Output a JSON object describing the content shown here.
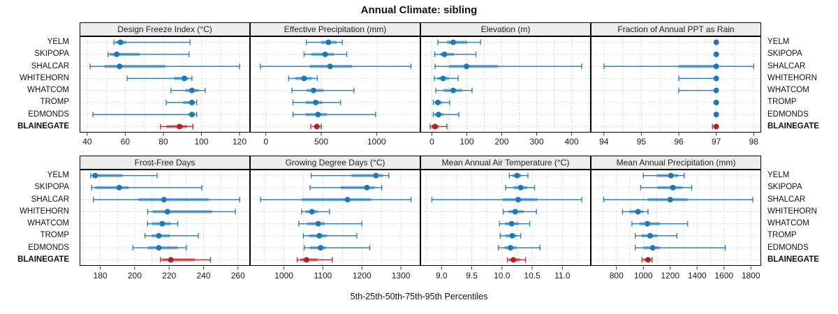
{
  "title": "Annual Climate: sibling",
  "caption": "5th-25th-50th-75th-95th Percentiles",
  "stations": [
    "YELM",
    "SKIPOPA",
    "SHALCAR",
    "WHITEHORN",
    "WHATCOM",
    "TROMP",
    "EDMONDS",
    "BLAINEGATE"
  ],
  "highlight_station": "BLAINEGATE",
  "colors": {
    "series": "#1f77b4",
    "highlight": "#b22222",
    "grid": "#c9c9c9",
    "strip_bg": "#ececec",
    "border": "#000000",
    "tick_text": "#1a1a1a"
  },
  "chart_data": {
    "type": "scatter",
    "subtype": "trellis-percentile-dot-whisker",
    "layout": {
      "rows": 2,
      "cols": 4,
      "grid": "dotted",
      "station_labels": "both-sides"
    },
    "percentiles": [
      5,
      25,
      50,
      75,
      95
    ],
    "panels": [
      {
        "title": "Design Freeze Index (°C)",
        "xlim": [
          36,
          125.5
        ],
        "ticks": [
          40,
          60,
          80,
          100,
          120
        ],
        "tick_labels": [
          "40",
          "60",
          "80",
          "100",
          "120"
        ],
        "minor_step": 10,
        "values": [
          [
            54,
            55,
            57.5,
            60.5,
            94
          ],
          [
            51,
            52,
            55.5,
            67.5,
            93.5
          ],
          [
            41.5,
            49,
            57,
            81,
            120
          ],
          [
            61,
            85.5,
            91,
            93,
            95
          ],
          [
            84,
            91.5,
            95,
            98.5,
            102
          ],
          [
            81.5,
            90.5,
            95,
            96.5,
            97.5
          ],
          [
            43,
            93,
            95,
            96.5,
            97.5
          ],
          [
            78.5,
            81.5,
            88.5,
            92.5,
            95.5
          ]
        ]
      },
      {
        "title": "Effective Precipitation (mm)",
        "xlim": [
          -143,
          1395
        ],
        "ticks": [
          0,
          500,
          1000
        ],
        "tick_labels": [
          "0",
          "500",
          "1000"
        ],
        "minor_step": 500,
        "values": [
          [
            365,
            500,
            565,
            640,
            690
          ],
          [
            345,
            410,
            535,
            615,
            730
          ],
          [
            -50,
            395,
            580,
            780,
            1310
          ],
          [
            205,
            265,
            345,
            415,
            465
          ],
          [
            235,
            370,
            430,
            520,
            795
          ],
          [
            245,
            360,
            450,
            510,
            675
          ],
          [
            245,
            360,
            470,
            550,
            990
          ],
          [
            405,
            440,
            460,
            485,
            500
          ]
        ]
      },
      {
        "title": "Elevation (m)",
        "xlim": [
          -33,
          455
        ],
        "ticks": [
          0,
          100,
          200,
          300,
          400
        ],
        "tick_labels": [
          "0",
          "100",
          "200",
          "300",
          "400"
        ],
        "minor_step": 50,
        "values": [
          [
            17,
            43,
            61,
            101,
            139
          ],
          [
            8,
            23,
            36,
            63,
            126
          ],
          [
            9,
            49,
            99,
            189,
            429
          ],
          [
            7,
            16,
            32,
            49,
            75
          ],
          [
            11,
            33,
            61,
            86,
            115
          ],
          [
            4,
            9,
            17,
            29,
            51
          ],
          [
            4,
            9,
            19,
            33,
            77
          ],
          [
            -5,
            -1,
            9,
            19,
            43
          ]
        ]
      },
      {
        "title": "Fraction of Annual PPT as Rain",
        "xlim": [
          93.65,
          98.2
        ],
        "ticks": [
          94,
          95,
          96,
          97,
          98
        ],
        "tick_labels": [
          "94",
          "95",
          "96",
          "97",
          "98"
        ],
        "minor_step": 0.5,
        "values": [
          [
            97,
            97,
            97,
            97,
            97
          ],
          [
            97,
            97,
            97,
            97,
            97
          ],
          [
            94,
            96,
            97,
            97,
            98
          ],
          [
            96,
            97,
            97,
            97,
            97
          ],
          [
            96,
            97,
            97,
            97,
            97
          ],
          [
            97,
            97,
            97,
            97,
            97
          ],
          [
            97,
            97,
            97,
            97,
            97
          ],
          [
            96.9,
            97,
            97,
            97,
            97
          ]
        ]
      },
      {
        "title": "Frost-Free Days",
        "xlim": [
          168,
          267
        ],
        "ticks": [
          180,
          200,
          220,
          240,
          260
        ],
        "tick_labels": [
          "180",
          "200",
          "220",
          "240",
          "260"
        ],
        "minor_step": 10,
        "values": [
          [
            174.5,
            175.5,
            177,
            193,
            213
          ],
          [
            175,
            177,
            191,
            196.5,
            239
          ],
          [
            176,
            202,
            217,
            243,
            261
          ],
          [
            207.5,
            210.5,
            219,
            245,
            258.5
          ],
          [
            207.5,
            210,
            216,
            221,
            225
          ],
          [
            206,
            210,
            214,
            220.5,
            237
          ],
          [
            199,
            207.5,
            214,
            225,
            230
          ],
          [
            215,
            216,
            221,
            235,
            244
          ]
        ]
      },
      {
        "title": "Growing Degree Days (°C)",
        "xlim": [
          913,
          1350
        ],
        "ticks": [
          1000,
          1100,
          1200,
          1300
        ],
        "tick_labels": [
          "1000",
          "1100",
          "1200",
          "1300"
        ],
        "minor_step": 50,
        "values": [
          [
            1070,
            1173,
            1236,
            1254,
            1269
          ],
          [
            1067,
            1146,
            1213,
            1233,
            1251
          ],
          [
            940,
            1045,
            1163,
            1224,
            1326
          ],
          [
            1045,
            1056,
            1072,
            1087,
            1117
          ],
          [
            1038,
            1060,
            1088,
            1105,
            1200
          ],
          [
            1050,
            1064,
            1091,
            1110,
            1187
          ],
          [
            1052,
            1067,
            1094,
            1108,
            1220
          ],
          [
            1034,
            1042,
            1058,
            1087,
            1124
          ]
        ]
      },
      {
        "title": "Mean Annual Air Temperature (°C)",
        "xlim": [
          8.65,
          11.47
        ],
        "ticks": [
          9.0,
          9.5,
          10.0,
          10.5,
          11.0
        ],
        "tick_labels": [
          "9.0",
          "9.5",
          "10.0",
          "10.5",
          "11.0"
        ],
        "minor_step": 0.25,
        "values": [
          [
            10.12,
            10.17,
            10.25,
            10.32,
            10.43
          ],
          [
            10.06,
            10.19,
            10.31,
            10.42,
            10.54
          ],
          [
            8.84,
            10.01,
            10.27,
            10.59,
            11.32
          ],
          [
            10.02,
            10.11,
            10.22,
            10.36,
            10.57
          ],
          [
            9.96,
            10.05,
            10.16,
            10.28,
            10.46
          ],
          [
            9.97,
            10.06,
            10.17,
            10.24,
            10.31
          ],
          [
            9.94,
            10.04,
            10.14,
            10.24,
            10.63
          ],
          [
            10.09,
            10.12,
            10.19,
            10.3,
            10.39
          ]
        ]
      },
      {
        "title": "Mean Annual Precipitation (mm)",
        "xlim": [
          609,
          1877
        ],
        "ticks": [
          800,
          1000,
          1200,
          1400,
          1600,
          1800
        ],
        "tick_labels": [
          "800",
          "1000",
          "1200",
          "1400",
          "1600",
          "1800"
        ],
        "minor_step": 100,
        "values": [
          [
            1000,
            1100,
            1205,
            1260,
            1305
          ],
          [
            980,
            1105,
            1220,
            1290,
            1360
          ],
          [
            705,
            1030,
            1200,
            1330,
            1815
          ],
          [
            845,
            895,
            960,
            1000,
            1035
          ],
          [
            915,
            970,
            1030,
            1125,
            1330
          ],
          [
            940,
            985,
            1050,
            1105,
            1250
          ],
          [
            940,
            1000,
            1070,
            1125,
            1610
          ],
          [
            990,
            1005,
            1035,
            1055,
            1065
          ]
        ]
      }
    ]
  }
}
